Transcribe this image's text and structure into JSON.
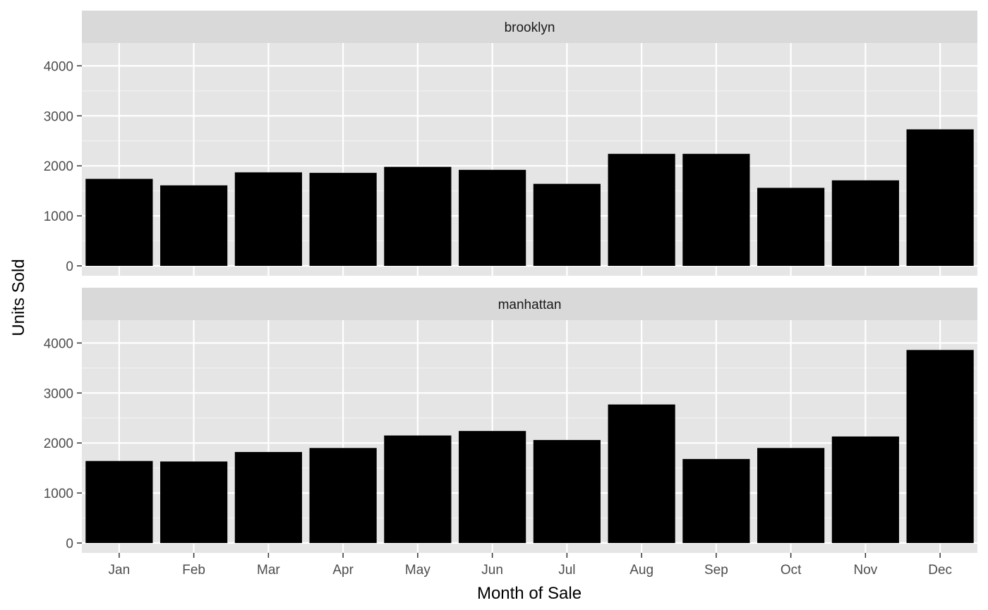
{
  "chart_data": {
    "type": "bar",
    "xlabel": "Month of Sale",
    "ylabel": "Units Sold",
    "categories": [
      "Jan",
      "Feb",
      "Mar",
      "Apr",
      "May",
      "Jun",
      "Jul",
      "Aug",
      "Sep",
      "Oct",
      "Nov",
      "Dec"
    ],
    "ylim": [
      0,
      4400
    ],
    "yticks": [
      0,
      1000,
      2000,
      3000,
      4000
    ],
    "grid": true,
    "bar_color": "#000000",
    "panel_background": "#e5e5e5",
    "strip_background": "#d9d9d9",
    "facets": [
      {
        "name": "brooklyn",
        "values": [
          1740,
          1610,
          1870,
          1860,
          1980,
          1920,
          1640,
          2240,
          2240,
          1560,
          1710,
          2730
        ]
      },
      {
        "name": "manhattan",
        "values": [
          1640,
          1630,
          1820,
          1900,
          2150,
          2240,
          2060,
          2770,
          1680,
          1900,
          2130,
          3860
        ]
      }
    ]
  }
}
